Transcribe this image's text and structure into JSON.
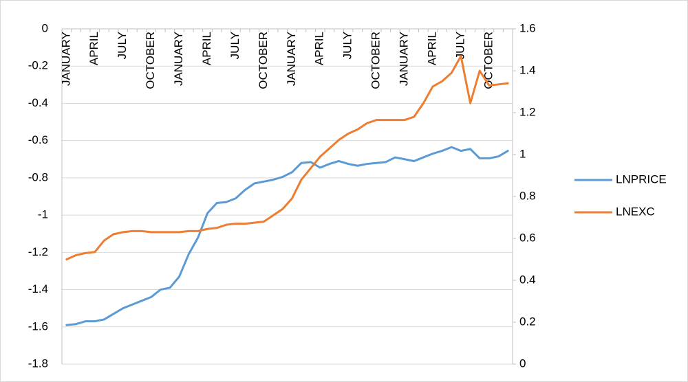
{
  "chart_data": {
    "type": "line",
    "categories": [
      "JANUARY",
      null,
      null,
      "APRIL",
      null,
      null,
      "JULY",
      null,
      null,
      "OCTOBER",
      null,
      null,
      "JANUARY",
      null,
      null,
      "APRIL",
      null,
      null,
      "JULY",
      null,
      null,
      "OCTOBER",
      null,
      null,
      "JANUARY",
      null,
      null,
      "APRIL",
      null,
      null,
      "JULY",
      null,
      null,
      "OCTOBER",
      null,
      null,
      "JANUARY",
      null,
      null,
      "APRIL",
      null,
      null,
      "JULY",
      null,
      null,
      "OCTOBER",
      null,
      null
    ],
    "series": [
      {
        "name": "LNPRICE",
        "color": "#5b9bd5",
        "axis": "y",
        "values": [
          -1.59,
          -1.585,
          -1.57,
          -1.57,
          -1.56,
          -1.53,
          -1.5,
          -1.48,
          -1.46,
          -1.44,
          -1.4,
          -1.39,
          -1.33,
          -1.21,
          -1.12,
          -0.99,
          -0.935,
          -0.93,
          -0.91,
          -0.865,
          -0.83,
          -0.82,
          -0.81,
          -0.795,
          -0.77,
          -0.72,
          -0.715,
          -0.745,
          -0.725,
          -0.71,
          -0.725,
          -0.735,
          -0.725,
          -0.72,
          -0.715,
          -0.69,
          -0.7,
          -0.71,
          -0.69,
          -0.67,
          -0.655,
          -0.635,
          -0.655,
          -0.645,
          -0.695,
          -0.695,
          -0.685,
          -0.655
        ]
      },
      {
        "name": "LNEXC",
        "color": "#ed7d31",
        "axis": "y2",
        "values": [
          0.5,
          0.52,
          0.53,
          0.535,
          0.59,
          0.62,
          0.63,
          0.635,
          0.635,
          0.63,
          0.63,
          0.63,
          0.63,
          0.635,
          0.635,
          0.645,
          0.65,
          0.665,
          0.67,
          0.67,
          0.675,
          0.68,
          0.71,
          0.74,
          0.79,
          0.88,
          0.935,
          0.99,
          1.03,
          1.07,
          1.1,
          1.12,
          1.15,
          1.165,
          1.165,
          1.165,
          1.165,
          1.18,
          1.245,
          1.325,
          1.35,
          1.39,
          1.47,
          1.245,
          1.4,
          1.33,
          1.335,
          1.34
        ]
      }
    ],
    "ylim": [
      -1.8,
      0
    ],
    "yticks": [
      0,
      -0.2,
      -0.4,
      -0.6,
      -0.8,
      -1,
      -1.2,
      -1.4,
      -1.6,
      -1.8
    ],
    "y2lim": [
      0,
      1.6
    ],
    "y2ticks": [
      1.6,
      1.4,
      1.2,
      1,
      0.8,
      0.6,
      0.4,
      0.2,
      0
    ],
    "grid": true,
    "legend": "right"
  }
}
